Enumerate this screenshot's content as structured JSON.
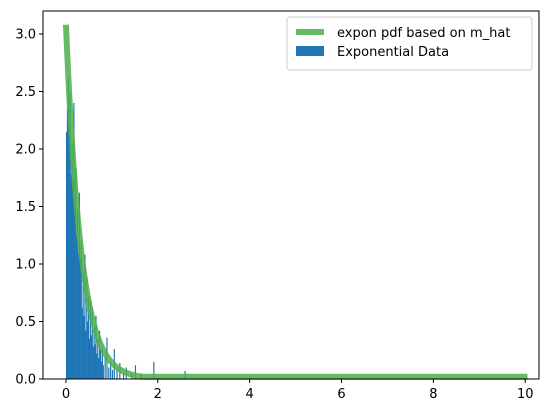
{
  "chart_data": {
    "type": "bar",
    "title": "",
    "xlabel": "",
    "ylabel": "",
    "xlim": [
      -0.5,
      10.3
    ],
    "ylim": [
      0,
      3.2
    ],
    "grid": false,
    "legend_placement": "top-right",
    "x_ticks": [
      0,
      2,
      4,
      6,
      8,
      10
    ],
    "x_tick_labels": [
      "0",
      "2",
      "4",
      "6",
      "8",
      "10"
    ],
    "y_ticks": [
      0.0,
      0.5,
      1.0,
      1.5,
      2.0,
      2.5,
      3.0
    ],
    "y_tick_labels": [
      "0.0",
      "0.5",
      "1.0",
      "1.5",
      "2.0",
      "2.5",
      "3.0"
    ],
    "series": [
      {
        "name": "expon pdf based on m_hat",
        "kind": "line",
        "color": "#4daf4a",
        "opacity": 0.85,
        "scale": 0.325,
        "peak": 3.08,
        "x_range": [
          0,
          10.05
        ],
        "floor": 0.02
      },
      {
        "name": "Exponential Data",
        "kind": "histogram",
        "color": "#1f77b4",
        "bins": [
          {
            "x": 0.0,
            "h": 2.15
          },
          {
            "x": 0.02,
            "h": 2.35
          },
          {
            "x": 0.04,
            "h": 2.62
          },
          {
            "x": 0.06,
            "h": 2.2
          },
          {
            "x": 0.08,
            "h": 2.48
          },
          {
            "x": 0.1,
            "h": 1.78
          },
          {
            "x": 0.12,
            "h": 2.05
          },
          {
            "x": 0.14,
            "h": 1.72
          },
          {
            "x": 0.16,
            "h": 2.4
          },
          {
            "x": 0.18,
            "h": 1.5
          },
          {
            "x": 0.2,
            "h": 1.83
          },
          {
            "x": 0.22,
            "h": 1.25
          },
          {
            "x": 0.24,
            "h": 1.48
          },
          {
            "x": 0.26,
            "h": 1.1
          },
          {
            "x": 0.28,
            "h": 1.62
          },
          {
            "x": 0.3,
            "h": 1.05
          },
          {
            "x": 0.32,
            "h": 1.2
          },
          {
            "x": 0.34,
            "h": 0.62
          },
          {
            "x": 0.36,
            "h": 0.95
          },
          {
            "x": 0.38,
            "h": 0.55
          },
          {
            "x": 0.4,
            "h": 1.08
          },
          {
            "x": 0.42,
            "h": 0.42
          },
          {
            "x": 0.44,
            "h": 0.88
          },
          {
            "x": 0.46,
            "h": 0.5
          },
          {
            "x": 0.48,
            "h": 0.72
          },
          {
            "x": 0.5,
            "h": 0.35
          },
          {
            "x": 0.52,
            "h": 0.68
          },
          {
            "x": 0.54,
            "h": 0.38
          },
          {
            "x": 0.56,
            "h": 0.62
          },
          {
            "x": 0.58,
            "h": 0.28
          },
          {
            "x": 0.6,
            "h": 0.45
          },
          {
            "x": 0.62,
            "h": 0.3
          },
          {
            "x": 0.64,
            "h": 0.55
          },
          {
            "x": 0.66,
            "h": 0.22
          },
          {
            "x": 0.68,
            "h": 0.35
          },
          {
            "x": 0.7,
            "h": 0.18
          },
          {
            "x": 0.72,
            "h": 0.42
          },
          {
            "x": 0.74,
            "h": 0.25
          },
          {
            "x": 0.76,
            "h": 0.15
          },
          {
            "x": 0.78,
            "h": 0.28
          },
          {
            "x": 0.8,
            "h": 0.12
          },
          {
            "x": 0.84,
            "h": 0.2
          },
          {
            "x": 0.88,
            "h": 0.36
          },
          {
            "x": 0.92,
            "h": 0.1
          },
          {
            "x": 0.96,
            "h": 0.15
          },
          {
            "x": 1.0,
            "h": 0.08
          },
          {
            "x": 1.04,
            "h": 0.26
          },
          {
            "x": 1.1,
            "h": 0.1
          },
          {
            "x": 1.16,
            "h": 0.14
          },
          {
            "x": 1.24,
            "h": 0.06
          },
          {
            "x": 1.3,
            "h": 0.1
          },
          {
            "x": 1.42,
            "h": 0.05
          },
          {
            "x": 1.5,
            "h": 0.12
          },
          {
            "x": 1.62,
            "h": 0.05
          },
          {
            "x": 1.9,
            "h": 0.15
          },
          {
            "x": 2.58,
            "h": 0.07
          }
        ]
      }
    ]
  }
}
